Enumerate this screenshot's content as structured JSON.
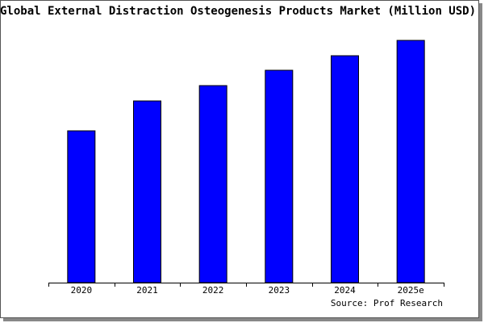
{
  "chart_data": {
    "type": "bar",
    "title": "Global External Distraction Osteogenesis Products Market (Million USD)",
    "categories": [
      "2020",
      "2021",
      "2022",
      "2023",
      "2024",
      "2025e"
    ],
    "values": [
      188,
      225,
      244,
      263,
      281,
      300
    ],
    "color": "#0000ff",
    "source": "Source: Prof Research"
  }
}
